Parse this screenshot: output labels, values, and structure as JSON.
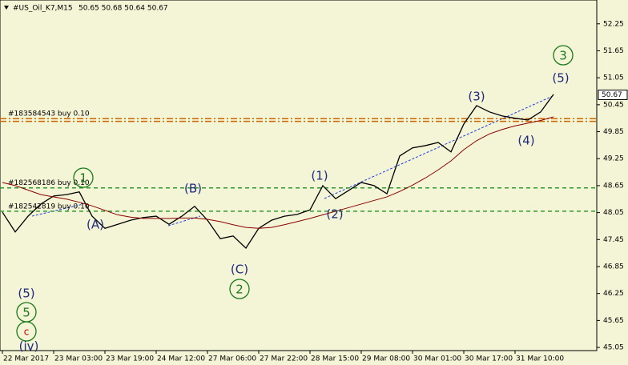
{
  "chart_data": {
    "type": "line",
    "title": "#US_Oil_K7,M15",
    "ohlc": "50.65 50.68 50.64 50.67",
    "categories": [
      "22 Mar 2017",
      null,
      null,
      null,
      "23 Mar 03:00",
      null,
      null,
      null,
      "23 Mar 19:00",
      null,
      null,
      null,
      "24 Mar 12:00",
      null,
      null,
      null,
      "27 Mar 06:00",
      null,
      null,
      null,
      "27 Mar 22:00",
      null,
      null,
      null,
      "28 Mar 15:00",
      null,
      null,
      null,
      "29 Mar 08:00",
      null,
      null,
      null,
      "30 Mar 01:00",
      null,
      null,
      null,
      "30 Mar 17:00",
      null,
      null,
      null,
      "31 Mar 10:00",
      null,
      null,
      null
    ],
    "series": [
      {
        "color": "#000000",
        "values": [
          48.06,
          47.62,
          47.97,
          48.24,
          48.42,
          48.45,
          48.51,
          47.97,
          47.7,
          47.79,
          47.88,
          47.94,
          47.97,
          47.79,
          47.97,
          48.19,
          47.88,
          47.47,
          47.53,
          47.26,
          47.7,
          47.88,
          47.97,
          48.01,
          48.11,
          48.65,
          48.36,
          48.54,
          48.72,
          48.65,
          48.47,
          49.31,
          49.49,
          49.54,
          49.61,
          49.4,
          50.02,
          50.43,
          50.29,
          50.2,
          50.15,
          50.11,
          50.29,
          50.68
        ]
      },
      {
        "color": "#8b0000",
        "values": [
          48.72,
          48.65,
          48.55,
          48.45,
          48.4,
          48.35,
          48.28,
          48.2,
          48.1,
          48.0,
          47.95,
          47.92,
          47.92,
          47.92,
          47.93,
          47.93,
          47.9,
          47.85,
          47.78,
          47.72,
          47.7,
          47.72,
          47.78,
          47.85,
          47.92,
          48.0,
          48.08,
          48.16,
          48.24,
          48.32,
          48.4,
          48.52,
          48.66,
          48.82,
          49.0,
          49.2,
          49.45,
          49.65,
          49.8,
          49.9,
          49.98,
          50.04,
          50.1,
          50.18
        ]
      }
    ],
    "ylim": [
      44.98,
      52.78
    ],
    "yticks": [
      52.25,
      51.65,
      51.05,
      50.45,
      49.85,
      49.25,
      48.65,
      48.05,
      47.45,
      46.85,
      46.25,
      45.65,
      45.05
    ],
    "last_price": {
      "value": 50.67,
      "color": "#000000"
    },
    "levels": [
      {
        "value": 50.14,
        "label": "#183584543 buy 0.10",
        "color": "#cc6600"
      },
      {
        "value": 50.08,
        "color": "#cc6600"
      },
      {
        "value": 48.6,
        "label": "#182568186 buy 0.10",
        "color": "#2e9a2e"
      },
      {
        "value": 48.08,
        "label": "#182542819 buy 0.10",
        "color": "#2e9a2e"
      }
    ],
    "annotations": [
      "(5)",
      "5",
      "c",
      "(iv)",
      "1",
      "(A)",
      "(B)",
      "(C)",
      "2",
      "(1)",
      "(2)",
      "(3)",
      "(4)",
      "(5)",
      "3"
    ]
  }
}
